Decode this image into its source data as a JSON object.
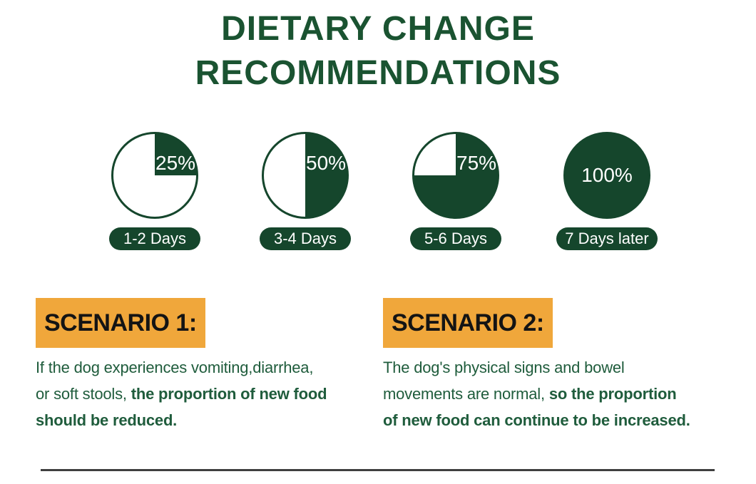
{
  "title": {
    "line1": "DIETARY CHANGE",
    "line2": "RECOMMENDATIONS"
  },
  "transition_steps": [
    {
      "percent": 25,
      "percent_label": "25%",
      "period": "1-2 Days"
    },
    {
      "percent": 50,
      "percent_label": "50%",
      "period": "3-4 Days"
    },
    {
      "percent": 75,
      "percent_label": "75%",
      "period": "5-6 Days"
    },
    {
      "percent": 100,
      "percent_label": "100%",
      "period": "7 Days later"
    }
  ],
  "scenarios": [
    {
      "heading": "SCENARIO 1:",
      "lines": [
        {
          "segments": [
            {
              "text": "If the dog experiences vomiting,diarrhea,",
              "bold": false
            }
          ]
        },
        {
          "segments": [
            {
              "text": "or soft stools, ",
              "bold": false
            },
            {
              "text": "the proportion of new food",
              "bold": true
            }
          ]
        },
        {
          "segments": [
            {
              "text": "should be reduced.",
              "bold": true
            }
          ]
        }
      ]
    },
    {
      "heading": "SCENARIO 2:",
      "lines": [
        {
          "segments": [
            {
              "text": "The dog's physical signs and bowel",
              "bold": false
            }
          ]
        },
        {
          "segments": [
            {
              "text": "movements are normal, ",
              "bold": false
            },
            {
              "text": "so the proportion",
              "bold": true
            }
          ]
        },
        {
          "segments": [
            {
              "text": "of new food can continue to be increased.",
              "bold": true
            }
          ]
        }
      ]
    }
  ],
  "colors": {
    "title_green": "#1A5331",
    "pie_green": "#15462C",
    "pie_empty": "#FFFFFF",
    "body_green": "#1F5C3C",
    "accent_orange": "#F0A73B",
    "heading_text": "#141414",
    "divider_gray": "#3F3F3F",
    "label_white": "#FFFFFF"
  },
  "chart_data": {
    "type": "pie",
    "title": "DIETARY CHANGE RECOMMENDATIONS",
    "categories": [
      "1-2 Days",
      "3-4 Days",
      "5-6 Days",
      "7 Days later"
    ],
    "values": [
      25,
      50,
      75,
      100
    ],
    "data_labels": [
      "25%",
      "50%",
      "75%",
      "100%"
    ],
    "legend_position": "below-each-pie",
    "note": "four pies, filled clockwise from 12 o'clock with dark green share of new food"
  }
}
